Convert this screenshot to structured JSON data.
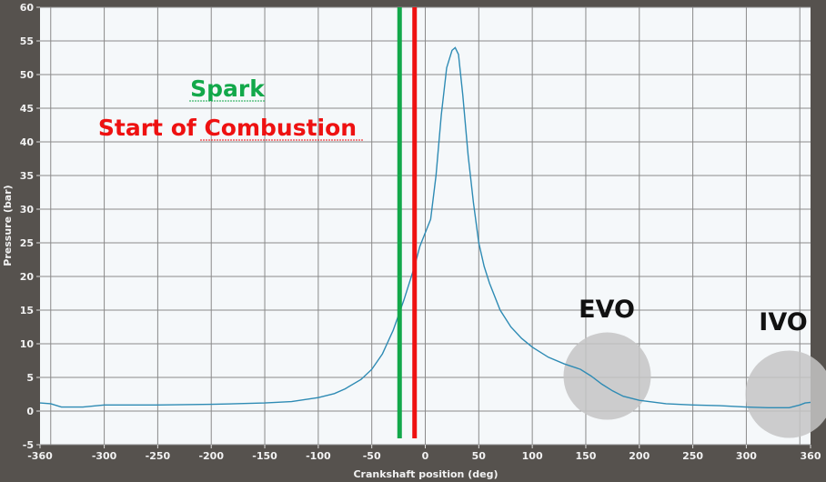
{
  "chart_data": {
    "type": "line",
    "title": "",
    "xlabel": "Crankshaft position (deg)",
    "ylabel": "Pressure (bar)",
    "xlim": [
      -360,
      360
    ],
    "ylim": [
      -5,
      60
    ],
    "x_ticks": [
      -360,
      -300,
      -250,
      -200,
      -150,
      -100,
      -50,
      0,
      50,
      100,
      150,
      200,
      250,
      300,
      360
    ],
    "y_ticks": [
      -5,
      0,
      5,
      10,
      15,
      20,
      25,
      30,
      35,
      40,
      45,
      50,
      55,
      60
    ],
    "x_grid": [
      -350,
      -300,
      -250,
      -200,
      -150,
      -100,
      -50,
      0,
      50,
      100,
      150,
      200,
      250,
      300,
      350
    ],
    "grid": true,
    "series": [
      {
        "color": "#2e8bb4",
        "x": [
          -360,
          -350,
          -340,
          -320,
          -300,
          -280,
          -250,
          -200,
          -150,
          -125,
          -100,
          -85,
          -75,
          -60,
          -50,
          -40,
          -30,
          -20,
          -10,
          -5,
          0,
          5,
          10,
          15,
          20,
          25,
          28,
          31,
          35,
          40,
          45,
          50,
          55,
          60,
          70,
          80,
          90,
          100,
          115,
          130,
          145,
          155,
          165,
          175,
          185,
          200,
          225,
          250,
          275,
          300,
          320,
          340,
          350,
          355,
          360
        ],
        "y": [
          1.2,
          1.1,
          0.6,
          0.6,
          0.9,
          0.9,
          0.9,
          1.0,
          1.2,
          1.4,
          2.0,
          2.6,
          3.3,
          4.7,
          6.2,
          8.5,
          12,
          16.5,
          21.5,
          24.5,
          26.5,
          28.5,
          35,
          44,
          51,
          53.6,
          54,
          53,
          47,
          38,
          31,
          25,
          21.5,
          19,
          15,
          12.5,
          10.8,
          9.5,
          8,
          7,
          6.2,
          5.2,
          4,
          3,
          2.2,
          1.6,
          1.1,
          0.9,
          0.8,
          0.6,
          0.5,
          0.5,
          0.9,
          1.2,
          1.3
        ]
      }
    ],
    "markers": [
      {
        "label": "Spark",
        "x": -24,
        "color": "#12a84a"
      },
      {
        "label": "Start of Combustion",
        "x": -10,
        "color": "#ee1111"
      }
    ],
    "annotations": [
      {
        "label": "EVO",
        "x": 170,
        "y": 5.2
      },
      {
        "label": "IVO",
        "x": 340,
        "y": 2.5
      }
    ]
  }
}
